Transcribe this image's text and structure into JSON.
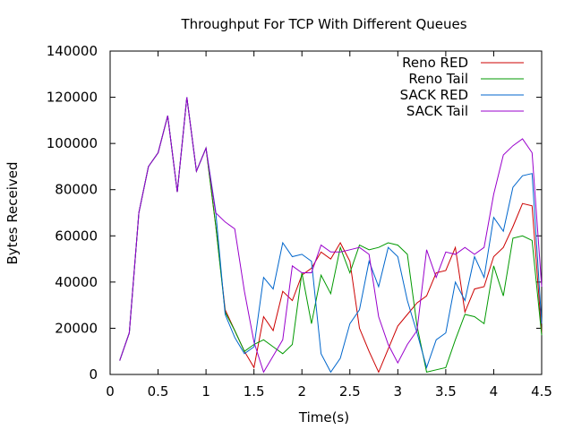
{
  "chart_data": {
    "type": "line",
    "title": "Throughput For TCP With Different Queues",
    "xlabel": "Time(s)",
    "ylabel": "Bytes Received",
    "xlim": [
      0,
      4.5
    ],
    "ylim": [
      0,
      140000
    ],
    "xticks": [
      0,
      0.5,
      1,
      1.5,
      2,
      2.5,
      3,
      3.5,
      4,
      4.5
    ],
    "xtick_labels": [
      "0",
      "0.5",
      "1",
      "1.5",
      "2",
      "2.5",
      "3",
      "3.5",
      "4",
      "4.5"
    ],
    "yticks": [
      0,
      20000,
      40000,
      60000,
      80000,
      100000,
      120000,
      140000
    ],
    "ytick_labels": [
      "0",
      "20000",
      "40000",
      "60000",
      "80000",
      "100000",
      "120000",
      "140000"
    ],
    "grid": false,
    "legend_position": "top-right",
    "x": [
      0.1,
      0.2,
      0.3,
      0.4,
      0.5,
      0.6,
      0.7,
      0.8,
      0.9,
      1.0,
      1.1,
      1.2,
      1.3,
      1.4,
      1.5,
      1.6,
      1.7,
      1.8,
      1.9,
      2.0,
      2.1,
      2.2,
      2.3,
      2.4,
      2.5,
      2.6,
      2.7,
      2.8,
      2.9,
      3.0,
      3.1,
      3.2,
      3.3,
      3.4,
      3.5,
      3.6,
      3.7,
      3.8,
      3.9,
      4.0,
      4.1,
      4.2,
      4.3,
      4.4,
      4.5
    ],
    "series": [
      {
        "name": "Reno RED",
        "color": "#cc0000",
        "values": [
          6000,
          18000,
          70000,
          90000,
          96000,
          112000,
          79000,
          120000,
          88000,
          98000,
          65000,
          28000,
          19000,
          10000,
          3000,
          25000,
          19000,
          36000,
          32000,
          43000,
          46000,
          53000,
          50000,
          57000,
          49000,
          20000,
          10000,
          1000,
          11000,
          21000,
          26000,
          31000,
          34000,
          44000,
          45000,
          55000,
          27000,
          37000,
          38000,
          51000,
          55000,
          64000,
          74000,
          73000,
          18000
        ]
      },
      {
        "name": "Reno Tail",
        "color": "#009900",
        "values": [
          6000,
          18000,
          70000,
          90000,
          96000,
          112000,
          79000,
          120000,
          88000,
          98000,
          65000,
          27000,
          19000,
          10000,
          13000,
          15000,
          12000,
          9000,
          13000,
          44000,
          22000,
          43000,
          35000,
          55000,
          44000,
          56000,
          54000,
          55000,
          57000,
          56000,
          52000,
          21000,
          1000,
          2000,
          3000,
          15000,
          26000,
          25000,
          22000,
          47000,
          34000,
          59000,
          60000,
          58000,
          17000
        ]
      },
      {
        "name": "SACK RED",
        "color": "#0066cc",
        "values": [
          6000,
          18000,
          70000,
          90000,
          96000,
          112000,
          79000,
          120000,
          88000,
          98000,
          71000,
          26000,
          16000,
          9000,
          12000,
          42000,
          37000,
          57000,
          51000,
          52000,
          49000,
          9000,
          1000,
          7000,
          22000,
          28000,
          49000,
          38000,
          55000,
          51000,
          32000,
          18000,
          3000,
          15000,
          18000,
          40000,
          32000,
          51000,
          42000,
          68000,
          62000,
          81000,
          86000,
          87000,
          22000
        ]
      },
      {
        "name": "SACK Tail",
        "color": "#9900cc",
        "values": [
          6000,
          18000,
          70000,
          90000,
          96000,
          112000,
          79000,
          120000,
          88000,
          98000,
          70000,
          66000,
          63000,
          36000,
          14000,
          1000,
          8000,
          15000,
          47000,
          44000,
          44000,
          56000,
          53000,
          53000,
          54000,
          55000,
          52000,
          25000,
          13000,
          5000,
          13000,
          19000,
          54000,
          42000,
          53000,
          52000,
          55000,
          52000,
          55000,
          78000,
          95000,
          99000,
          102000,
          96000,
          38000
        ]
      }
    ]
  }
}
